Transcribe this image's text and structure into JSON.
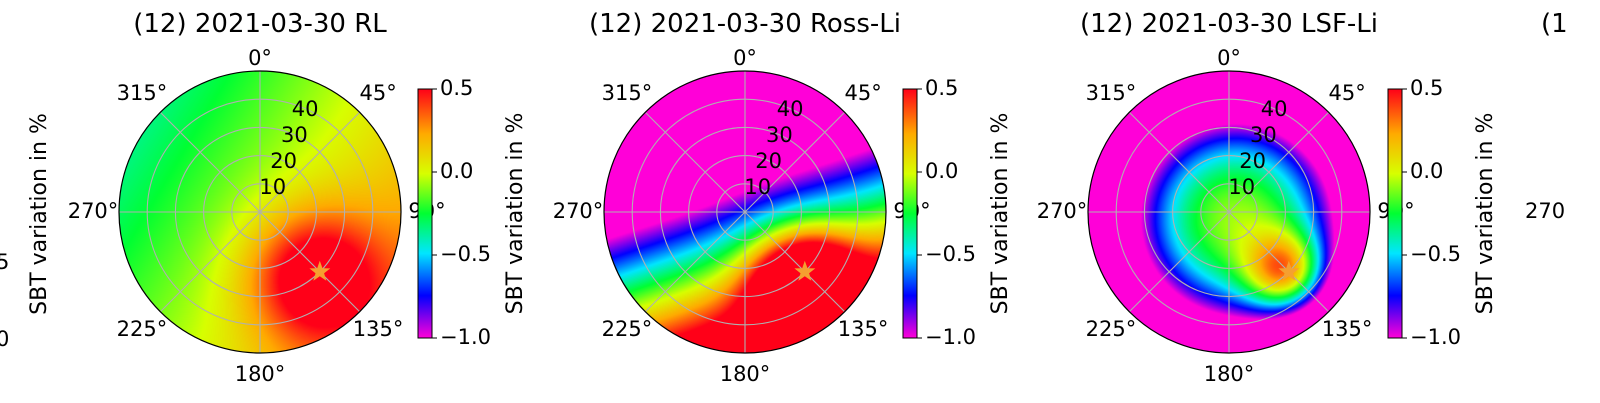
{
  "chart_data": [
    {
      "type": "heatmap",
      "projection": "polar",
      "title": "(12) 2021-03-30 RL",
      "theta_ticks": [
        "0°",
        "45°",
        "90°",
        "135°",
        "180°",
        "225°",
        "270°",
        "315°"
      ],
      "r_ticks": [
        "10",
        "20",
        "30",
        "40"
      ],
      "r_lim": [
        0,
        50
      ],
      "grid": true,
      "colorbar": {
        "label": "SBT variation in %",
        "ticks": [
          "0.5",
          "0.0",
          "−0.5",
          "−1.0"
        ],
        "range": [
          -1.0,
          0.5
        ],
        "colormap": "gist_rainbow_r"
      },
      "marker": {
        "symbol": "star",
        "color": "#f5a030",
        "theta_deg": 135,
        "r": 30
      },
      "field": {
        "base": -0.05,
        "gradient": [
          0.005,
          0.003
        ],
        "blobs": [
          {
            "theta_deg": 140,
            "r": 30,
            "amp": 0.6,
            "sigma": 16
          }
        ]
      }
    },
    {
      "type": "heatmap",
      "projection": "polar",
      "title": "(12) 2021-03-30 Ross-Li",
      "theta_ticks": [
        "0°",
        "45°",
        "90°",
        "135°",
        "180°",
        "225°",
        "270°",
        "315°"
      ],
      "r_ticks": [
        "10",
        "20",
        "30",
        "40"
      ],
      "r_lim": [
        0,
        50
      ],
      "grid": true,
      "colorbar": {
        "label": "SBT variation in %",
        "ticks": [
          "0.5",
          "0.0",
          "−0.5",
          "−1.0"
        ],
        "range": [
          -1.0,
          0.5
        ],
        "colormap": "gist_rainbow_r"
      },
      "marker": {
        "symbol": "star",
        "color": "#f5a030",
        "theta_deg": 135,
        "r": 30
      },
      "field": {
        "base": -0.75,
        "gradient": [
          0.012,
          0.035
        ],
        "blobs": [
          {
            "theta_deg": 140,
            "r": 32,
            "amp": 1.05,
            "sigma": 13
          },
          {
            "theta_deg": 315,
            "r": 45,
            "amp": -0.4,
            "sigma": 14
          }
        ]
      }
    },
    {
      "type": "heatmap",
      "projection": "polar",
      "title": "(12) 2021-03-30 LSF-Li",
      "theta_ticks": [
        "0°",
        "45°",
        "90°",
        "135°",
        "180°",
        "225°",
        "270°",
        "315°"
      ],
      "r_ticks": [
        "10",
        "20",
        "30",
        "40"
      ],
      "r_lim": [
        0,
        50
      ],
      "grid": true,
      "colorbar": {
        "label": "SBT variation in %",
        "ticks": [
          "0.5",
          "0.0",
          "−0.5",
          "−1.0"
        ],
        "range": [
          -1.0,
          0.5
        ],
        "colormap": "gist_rainbow_r"
      },
      "marker": {
        "symbol": "star",
        "color": "#f5a030",
        "theta_deg": 135,
        "r": 30
      },
      "field": {
        "base": -0.1,
        "gradient": [
          0.004,
          0.004
        ],
        "radial": -0.0008,
        "blobs": [
          {
            "theta_deg": 137,
            "r": 30,
            "amp": 0.95,
            "sigma": 10
          }
        ]
      }
    }
  ],
  "clipped_left": {
    "tick_upper": "5",
    "tick_lower": "0",
    "label": "SBT variation in %"
  },
  "clipped_right": {
    "title": "(1",
    "tick": "270"
  }
}
